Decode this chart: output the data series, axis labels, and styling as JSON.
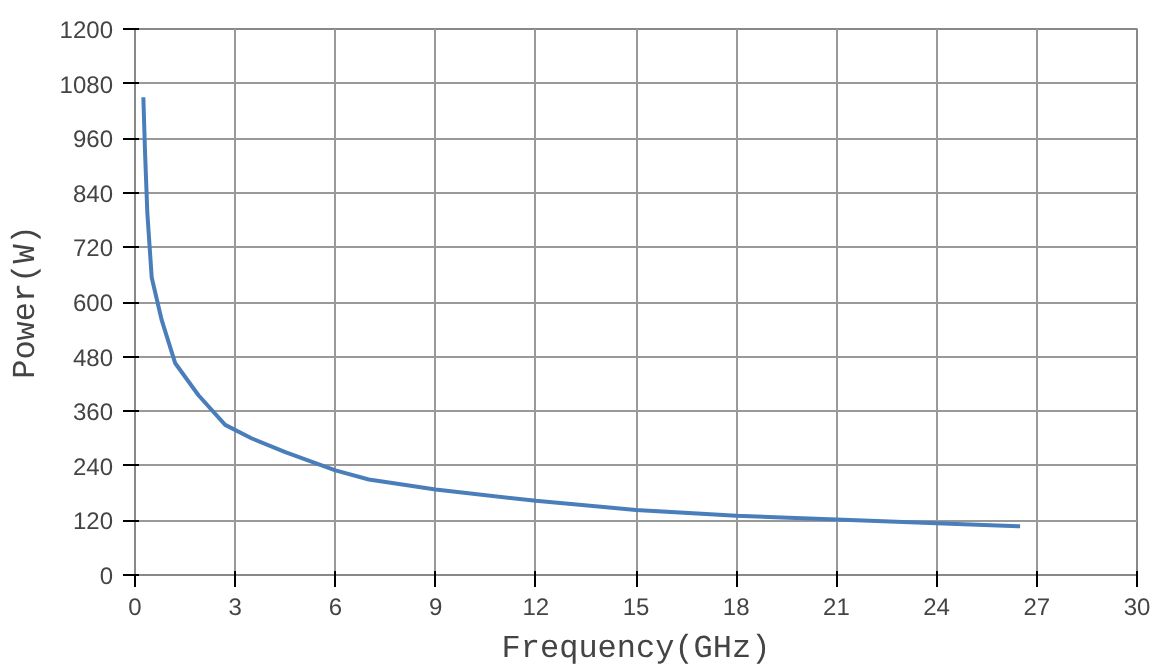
{
  "chart_data": {
    "type": "line",
    "xlabel": "Frequency(GHz)",
    "ylabel": "Power(W)",
    "series": [
      {
        "color": "#4a7ebb",
        "x": [
          0.25,
          0.3,
          0.37,
          0.5,
          0.8,
          1.2,
          1.9,
          2.7,
          3.5,
          4.5,
          6,
          7,
          9,
          12,
          15,
          18,
          21,
          24,
          26.5
        ],
        "values": [
          1050,
          930,
          795,
          654,
          560,
          466,
          395,
          330,
          300,
          270,
          230,
          210,
          188,
          163,
          143,
          130,
          122,
          114,
          107
        ]
      }
    ],
    "xlim": [
      0,
      30
    ],
    "xticks": [
      0,
      3,
      6,
      9,
      12,
      15,
      18,
      21,
      24,
      27,
      30
    ],
    "ylim": [
      0,
      1200
    ],
    "yticks": [
      0,
      120,
      240,
      360,
      480,
      600,
      720,
      840,
      960,
      1080,
      1200
    ],
    "grid": true,
    "marker": "none",
    "line_style": "solid"
  }
}
